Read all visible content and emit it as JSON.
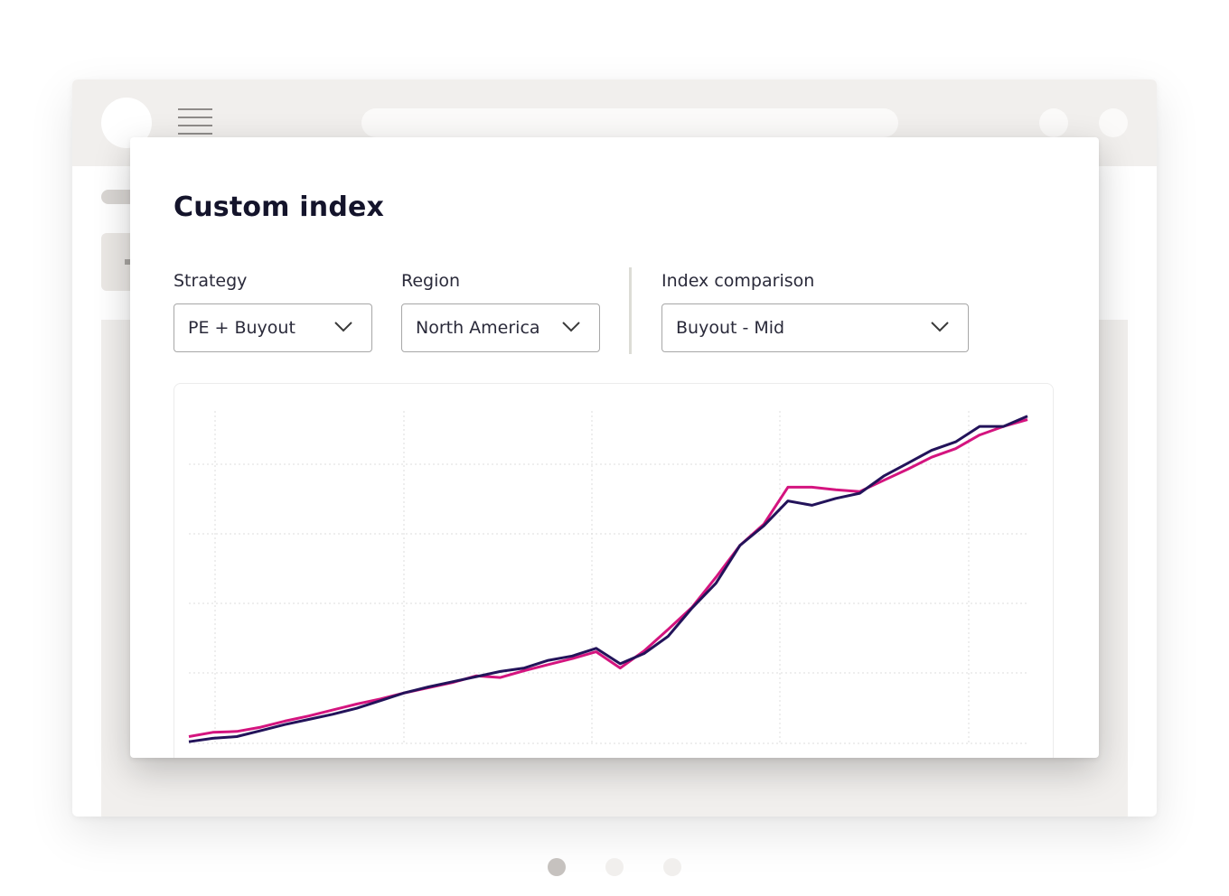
{
  "card": {
    "title": "Custom index",
    "strategy": {
      "label": "Strategy",
      "value": "PE + Buyout",
      "icon": "chevron-down-icon"
    },
    "region": {
      "label": "Region",
      "value": "North America",
      "icon": "chevron-down-icon"
    },
    "comparison": {
      "label": "Index comparison",
      "value": "Buyout - Mid",
      "icon": "chevron-down-icon"
    }
  },
  "colors": {
    "custom_index_line": "#d4147f",
    "comparison_line": "#23135a",
    "title": "#14142b",
    "active_dot": "#c6c2bf",
    "inactive_dot": "#f1efed"
  },
  "pagination": {
    "count": 3,
    "active_index": 0
  },
  "chart_data": {
    "type": "line",
    "x": [
      0,
      1,
      2,
      3,
      4,
      5,
      6,
      7,
      8,
      9,
      10,
      11,
      12,
      13,
      14,
      15,
      16,
      17,
      18,
      19,
      20,
      21,
      22,
      23,
      24,
      25,
      26,
      27,
      28,
      29,
      30,
      31,
      32,
      33,
      34,
      35
    ],
    "series": [
      {
        "values": [
          0,
          0.5,
          0.6,
          1.1,
          1.8,
          2.4,
          3.1,
          3.8,
          4.4,
          5.1,
          5.7,
          6.3,
          7.1,
          6.9,
          7.7,
          8.4,
          9.1,
          9.9,
          8.0,
          10.0,
          12.5,
          15.1,
          18.6,
          22.3,
          24.8,
          29.1,
          29.1,
          28.8,
          28.6,
          29.9,
          31.2,
          32.6,
          33.6,
          35.2,
          36.2,
          37.0
        ]
      },
      {
        "values": [
          -0.6,
          -0.2,
          0,
          0.7,
          1.4,
          2.0,
          2.6,
          3.3,
          4.2,
          5.1,
          5.8,
          6.4,
          7.0,
          7.6,
          8.0,
          8.9,
          9.4,
          10.3,
          8.5,
          9.7,
          11.7,
          15.0,
          17.9,
          22.3,
          24.6,
          27.5,
          27.0,
          27.8,
          28.4,
          30.4,
          31.9,
          33.4,
          34.4,
          36.2,
          36.2,
          37.4
        ]
      }
    ],
    "ylim": [
      -1,
      38
    ],
    "grid": true
  }
}
